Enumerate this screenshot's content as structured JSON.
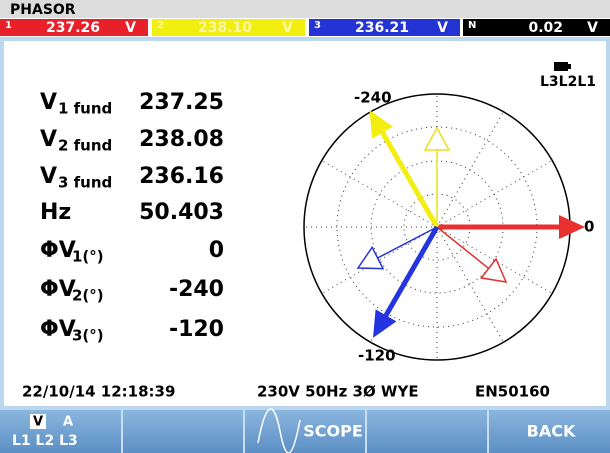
{
  "header": {
    "title": "PHASOR",
    "channels": [
      {
        "id": "1",
        "value": "237.26",
        "unit": "V"
      },
      {
        "id": "2",
        "value": "238.10",
        "unit": "V"
      },
      {
        "id": "3",
        "value": "236.21",
        "unit": "V"
      },
      {
        "id": "N",
        "value": "0.02",
        "unit": "V"
      }
    ]
  },
  "readings": [
    {
      "label": "V",
      "sub": "1 fund",
      "value": "237.25"
    },
    {
      "label": "V",
      "sub": "2 fund",
      "value": "238.08"
    },
    {
      "label": "V",
      "sub": "3 fund",
      "value": "236.16"
    },
    {
      "label": "Hz",
      "value": "50.403"
    },
    {
      "label": "ΦV",
      "sub": "1(°)",
      "value": 0
    },
    {
      "label": "ΦV",
      "sub": "2(°)",
      "value": -240
    },
    {
      "label": "ΦV",
      "sub": "3(°)",
      "value": -120
    }
  ],
  "phasor": {
    "sequence": "L3L2L1",
    "axis_labels": [
      "-240",
      "0",
      "-120"
    ]
  },
  "status": {
    "datetime": "22/10/14 12:18:39",
    "config": "230V 50Hz 3Ø WYE",
    "standard": "EN50160"
  },
  "softkeys": {
    "units": [
      "V",
      "A"
    ],
    "phases": "L1 L2 L3",
    "scope": "SCOPE",
    "back": "BACK"
  }
}
